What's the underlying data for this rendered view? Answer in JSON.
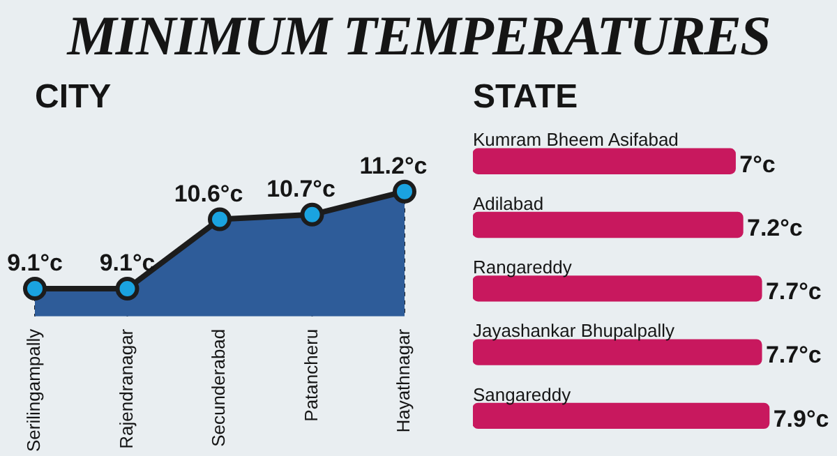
{
  "chart_data": [
    {
      "type": "area",
      "title": "MINIMUM TEMPERATURES",
      "subtitle": "CITY",
      "categories": [
        "Serilingampally",
        "Rajendranagar",
        "Secunderabad",
        "Patancheru",
        "Hayathnagar"
      ],
      "series": [
        {
          "color": "#2e5c99",
          "values": [
            9.1,
            9.1,
            10.6,
            10.7,
            11.2
          ],
          "value_labels": [
            "9.1°c",
            "9.1°c",
            "10.6°c",
            "10.7°c",
            "11.2°c"
          ]
        }
      ],
      "marker": "circle",
      "line_style": "solid",
      "legend": false
    },
    {
      "type": "bar",
      "title": "STATE",
      "orientation": "horizontal",
      "categories": [
        "Kumram Bheem Asifabad",
        "Adilabad",
        "Rangareddy",
        "Jayashankar Bhupalpally",
        "Sangareddy"
      ],
      "series": [
        {
          "color": "#c8185e",
          "values": [
            7,
            7.2,
            7.7,
            7.7,
            7.9
          ],
          "value_labels": [
            "7°c",
            "7.2°c",
            "7.7°c",
            "7.7°c",
            "7.9°c"
          ]
        }
      ],
      "legend": false
    }
  ]
}
